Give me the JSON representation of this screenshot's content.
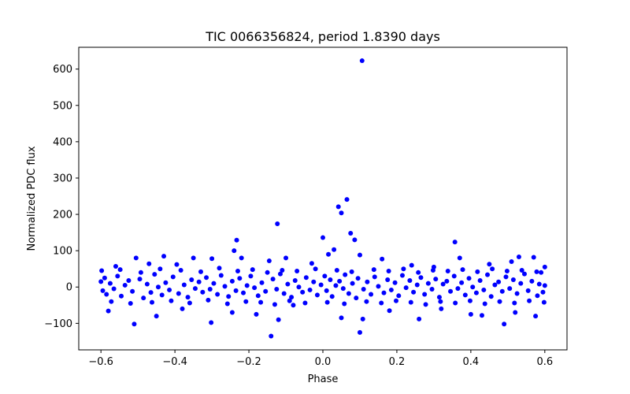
{
  "chart_data": {
    "type": "scatter",
    "title": "TIC 0066356824, period 1.8390 days",
    "xlabel": "Phase",
    "ylabel": "Normalized PDC flux",
    "xlim": [
      -0.66,
      0.66
    ],
    "ylim": [
      -173,
      660
    ],
    "x_ticks": [
      -0.6,
      -0.4,
      -0.2,
      0.0,
      0.2,
      0.4,
      0.6
    ],
    "x_tick_labels": [
      "−0.6",
      "−0.4",
      "−0.2",
      "0.0",
      "0.2",
      "0.4",
      "0.6"
    ],
    "y_ticks": [
      -100,
      0,
      100,
      200,
      300,
      400,
      500,
      600
    ],
    "y_tick_labels": [
      "−100",
      "0",
      "100",
      "200",
      "300",
      "400",
      "500",
      "600"
    ],
    "grid": false,
    "marker_color": "#0000ff",
    "series": [
      {
        "name": "flux",
        "points": [
          [
            0.106,
            623
          ],
          [
            0.065,
            241
          ],
          [
            0.042,
            221
          ],
          [
            0.05,
            204
          ],
          [
            -0.123,
            174
          ],
          [
            0.075,
            148
          ],
          [
            0.086,
            130
          ],
          [
            0.0,
            136
          ],
          [
            -0.233,
            129
          ],
          [
            0.357,
            124
          ],
          [
            0.03,
            103
          ],
          [
            -0.24,
            100
          ],
          [
            0.015,
            90
          ],
          [
            0.1,
            88
          ],
          [
            -0.505,
            80
          ],
          [
            -0.43,
            85
          ],
          [
            -0.35,
            80
          ],
          [
            -0.3,
            78
          ],
          [
            -0.22,
            80
          ],
          [
            -0.1,
            80
          ],
          [
            0.16,
            77
          ],
          [
            0.37,
            80
          ],
          [
            0.53,
            83
          ],
          [
            0.57,
            82
          ],
          [
            -0.56,
            57
          ],
          [
            -0.47,
            64
          ],
          [
            -0.395,
            62
          ],
          [
            -0.145,
            72
          ],
          [
            -0.03,
            65
          ],
          [
            0.24,
            60
          ],
          [
            0.3,
            55
          ],
          [
            0.45,
            63
          ],
          [
            0.51,
            70
          ],
          [
            0.6,
            55
          ],
          [
            -0.58,
            -66
          ],
          [
            -0.51,
            -102
          ],
          [
            -0.45,
            -80
          ],
          [
            -0.38,
            -60
          ],
          [
            -0.302,
            -98
          ],
          [
            -0.245,
            -70
          ],
          [
            -0.18,
            -75
          ],
          [
            -0.14,
            -135
          ],
          [
            -0.12,
            -90
          ],
          [
            -0.08,
            -50
          ],
          [
            0.05,
            -85
          ],
          [
            0.1,
            -125
          ],
          [
            0.108,
            -88
          ],
          [
            0.18,
            -65
          ],
          [
            0.26,
            -88
          ],
          [
            0.32,
            -60
          ],
          [
            0.4,
            -75
          ],
          [
            0.43,
            -78
          ],
          [
            0.49,
            -102
          ],
          [
            0.52,
            -70
          ],
          [
            0.575,
            -80
          ],
          [
            -0.6,
            15
          ],
          [
            -0.595,
            -10
          ],
          [
            -0.59,
            25
          ],
          [
            -0.585,
            -20
          ],
          [
            -0.575,
            10
          ],
          [
            -0.565,
            -5
          ],
          [
            -0.555,
            30
          ],
          [
            -0.545,
            -25
          ],
          [
            -0.535,
            5
          ],
          [
            -0.525,
            18
          ],
          [
            -0.515,
            -12
          ],
          [
            -0.495,
            22
          ],
          [
            -0.485,
            -30
          ],
          [
            -0.475,
            8
          ],
          [
            -0.465,
            -15
          ],
          [
            -0.455,
            35
          ],
          [
            -0.445,
            0
          ],
          [
            -0.435,
            -22
          ],
          [
            -0.425,
            12
          ],
          [
            -0.415,
            -8
          ],
          [
            -0.405,
            28
          ],
          [
            -0.39,
            -18
          ],
          [
            -0.375,
            6
          ],
          [
            -0.365,
            -28
          ],
          [
            -0.355,
            20
          ],
          [
            -0.345,
            -4
          ],
          [
            -0.335,
            14
          ],
          [
            -0.325,
            -14
          ],
          [
            -0.315,
            26
          ],
          [
            -0.305,
            -6
          ],
          [
            -0.295,
            10
          ],
          [
            -0.285,
            -20
          ],
          [
            -0.275,
            32
          ],
          [
            -0.265,
            2
          ],
          [
            -0.255,
            -26
          ],
          [
            -0.245,
            16
          ],
          [
            -0.235,
            -10
          ],
          [
            -0.225,
            24
          ],
          [
            -0.215,
            -16
          ],
          [
            -0.205,
            4
          ],
          [
            -0.195,
            30
          ],
          [
            -0.185,
            -2
          ],
          [
            -0.175,
            -24
          ],
          [
            -0.165,
            12
          ],
          [
            -0.155,
            -12
          ],
          [
            -0.135,
            22
          ],
          [
            -0.125,
            -6
          ],
          [
            -0.115,
            36
          ],
          [
            -0.105,
            -18
          ],
          [
            -0.095,
            8
          ],
          [
            -0.085,
            -28
          ],
          [
            -0.075,
            18
          ],
          [
            -0.065,
            0
          ],
          [
            -0.055,
            -14
          ],
          [
            -0.045,
            26
          ],
          [
            -0.035,
            -8
          ],
          [
            -0.025,
            14
          ],
          [
            -0.015,
            -22
          ],
          [
            -0.005,
            6
          ],
          [
            0.005,
            30
          ],
          [
            0.01,
            -10
          ],
          [
            0.02,
            20
          ],
          [
            0.025,
            -26
          ],
          [
            0.035,
            4
          ],
          [
            0.045,
            16
          ],
          [
            0.055,
            -4
          ],
          [
            0.06,
            34
          ],
          [
            0.07,
            -18
          ],
          [
            0.08,
            10
          ],
          [
            0.09,
            -30
          ],
          [
            0.095,
            24
          ],
          [
            0.11,
            -6
          ],
          [
            0.12,
            14
          ],
          [
            0.13,
            -20
          ],
          [
            0.14,
            28
          ],
          [
            0.15,
            2
          ],
          [
            0.165,
            -16
          ],
          [
            0.175,
            20
          ],
          [
            0.185,
            -8
          ],
          [
            0.195,
            12
          ],
          [
            0.205,
            -24
          ],
          [
            0.215,
            32
          ],
          [
            0.225,
            -2
          ],
          [
            0.235,
            18
          ],
          [
            0.245,
            -14
          ],
          [
            0.255,
            6
          ],
          [
            0.265,
            26
          ],
          [
            0.275,
            -20
          ],
          [
            0.285,
            10
          ],
          [
            0.295,
            -6
          ],
          [
            0.305,
            22
          ],
          [
            0.315,
            -28
          ],
          [
            0.325,
            8
          ],
          [
            0.335,
            16
          ],
          [
            0.345,
            -12
          ],
          [
            0.355,
            30
          ],
          [
            0.365,
            -4
          ],
          [
            0.375,
            12
          ],
          [
            0.385,
            -22
          ],
          [
            0.395,
            24
          ],
          [
            0.405,
            0
          ],
          [
            0.415,
            -16
          ],
          [
            0.425,
            18
          ],
          [
            0.435,
            -8
          ],
          [
            0.445,
            34
          ],
          [
            0.455,
            -26
          ],
          [
            0.465,
            6
          ],
          [
            0.475,
            14
          ],
          [
            0.485,
            -12
          ],
          [
            0.495,
            28
          ],
          [
            0.505,
            -4
          ],
          [
            0.515,
            20
          ],
          [
            0.525,
            -18
          ],
          [
            0.535,
            10
          ],
          [
            0.545,
            36
          ],
          [
            0.555,
            -10
          ],
          [
            0.565,
            16
          ],
          [
            0.58,
            -24
          ],
          [
            0.585,
            8
          ],
          [
            0.59,
            40
          ],
          [
            0.595,
            -14
          ],
          [
            0.6,
            4
          ],
          [
            -0.598,
            45
          ],
          [
            -0.572,
            -40
          ],
          [
            -0.548,
            48
          ],
          [
            -0.52,
            -45
          ],
          [
            -0.492,
            40
          ],
          [
            -0.462,
            -42
          ],
          [
            -0.44,
            50
          ],
          [
            -0.41,
            -38
          ],
          [
            -0.384,
            46
          ],
          [
            -0.36,
            -44
          ],
          [
            -0.33,
            42
          ],
          [
            -0.31,
            -36
          ],
          [
            -0.28,
            52
          ],
          [
            -0.258,
            -46
          ],
          [
            -0.23,
            44
          ],
          [
            -0.208,
            -40
          ],
          [
            -0.19,
            48
          ],
          [
            -0.168,
            -42
          ],
          [
            -0.15,
            40
          ],
          [
            -0.13,
            -48
          ],
          [
            -0.11,
            46
          ],
          [
            -0.09,
            -38
          ],
          [
            -0.07,
            44
          ],
          [
            -0.048,
            -44
          ],
          [
            -0.02,
            50
          ],
          [
            0.012,
            -42
          ],
          [
            0.038,
            46
          ],
          [
            0.058,
            -46
          ],
          [
            0.078,
            42
          ],
          [
            0.118,
            -40
          ],
          [
            0.138,
            48
          ],
          [
            0.158,
            -44
          ],
          [
            0.178,
            44
          ],
          [
            0.198,
            -38
          ],
          [
            0.218,
            50
          ],
          [
            0.238,
            -42
          ],
          [
            0.258,
            40
          ],
          [
            0.278,
            -48
          ],
          [
            0.298,
            46
          ],
          [
            0.318,
            -40
          ],
          [
            0.338,
            44
          ],
          [
            0.358,
            -44
          ],
          [
            0.378,
            48
          ],
          [
            0.398,
            -38
          ],
          [
            0.418,
            42
          ],
          [
            0.438,
            -46
          ],
          [
            0.458,
            50
          ],
          [
            0.478,
            -40
          ],
          [
            0.498,
            44
          ],
          [
            0.518,
            -44
          ],
          [
            0.538,
            46
          ],
          [
            0.558,
            -38
          ],
          [
            0.578,
            42
          ],
          [
            0.598,
            -42
          ]
        ]
      }
    ]
  }
}
